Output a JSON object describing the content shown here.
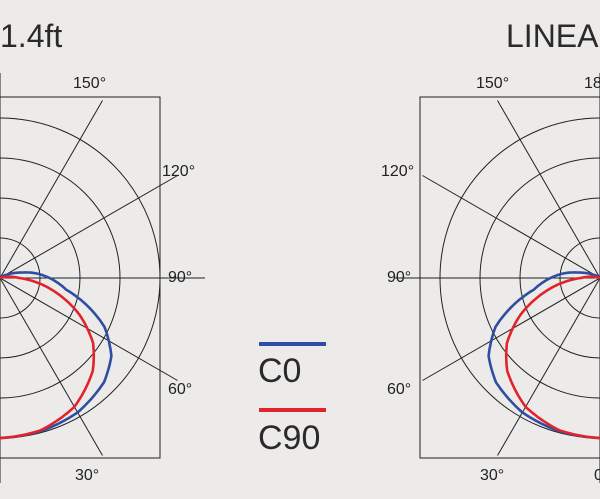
{
  "chart_data": [
    {
      "type": "polar",
      "title": "1.4ft",
      "angle_labels": [
        "150°",
        "120°",
        "90°",
        "60°",
        "30°"
      ],
      "rings": 4,
      "legend_placement": "right",
      "series": [
        {
          "name": "C0",
          "color": "#2e4ea3",
          "profile": [
            [
              0,
              1.0
            ],
            [
              15,
              0.99
            ],
            [
              30,
              0.97
            ],
            [
              45,
              0.92
            ],
            [
              55,
              0.85
            ],
            [
              65,
              0.72
            ],
            [
              72,
              0.58
            ],
            [
              80,
              0.42
            ],
            [
              90,
              0.31
            ],
            [
              98,
              0.22
            ],
            [
              105,
              0.13
            ],
            [
              115,
              0.05
            ],
            [
              130,
              0.0
            ]
          ]
        },
        {
          "name": "C90",
          "color": "#e3232b",
          "profile": [
            [
              0,
              1.0
            ],
            [
              15,
              0.985
            ],
            [
              30,
              0.93
            ],
            [
              45,
              0.82
            ],
            [
              55,
              0.71
            ],
            [
              65,
              0.55
            ],
            [
              75,
              0.37
            ],
            [
              85,
              0.2
            ],
            [
              90,
              0.12
            ],
            [
              100,
              0.04
            ],
            [
              110,
              0.0
            ]
          ]
        }
      ]
    },
    {
      "type": "polar",
      "title": "LINEA",
      "angle_labels": [
        "150°",
        "18",
        "120°",
        "90°",
        "60°",
        "30°",
        "0"
      ],
      "rings": 4,
      "series": [
        {
          "name": "C0",
          "color": "#2e4ea3",
          "profile": [
            [
              0,
              1.0
            ],
            [
              15,
              0.99
            ],
            [
              30,
              0.97
            ],
            [
              45,
              0.92
            ],
            [
              55,
              0.85
            ],
            [
              65,
              0.72
            ],
            [
              72,
              0.58
            ],
            [
              80,
              0.42
            ],
            [
              90,
              0.31
            ],
            [
              98,
              0.22
            ],
            [
              105,
              0.13
            ],
            [
              115,
              0.05
            ],
            [
              130,
              0.0
            ]
          ]
        },
        {
          "name": "C90",
          "color": "#e3232b",
          "profile": [
            [
              0,
              1.0
            ],
            [
              15,
              0.985
            ],
            [
              30,
              0.93
            ],
            [
              45,
              0.82
            ],
            [
              55,
              0.71
            ],
            [
              65,
              0.55
            ],
            [
              75,
              0.37
            ],
            [
              85,
              0.2
            ],
            [
              90,
              0.12
            ],
            [
              100,
              0.04
            ],
            [
              110,
              0.0
            ]
          ]
        }
      ]
    }
  ],
  "legend": [
    {
      "label": "C0",
      "color": "#2e4ea3"
    },
    {
      "label": "C90",
      "color": "#e3232b"
    }
  ]
}
